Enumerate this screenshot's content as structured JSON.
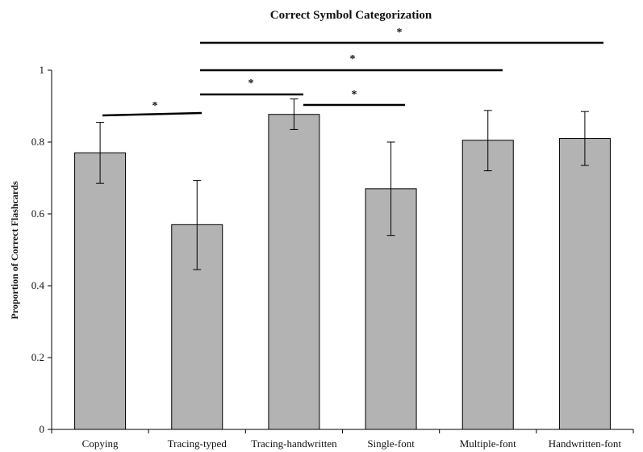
{
  "chart_data": {
    "type": "bar",
    "title": "Correct Symbol Categorization",
    "xlabel": "",
    "ylabel": "Proportion of Correct Flashcards",
    "ylim": [
      0,
      1
    ],
    "yticks": [
      "0",
      "0.2",
      "0.4",
      "0.6",
      "0.8",
      "1"
    ],
    "categories": [
      "Copying",
      "Tracing-typed",
      "Tracing-handwritten",
      "Single-font",
      "Multiple-font",
      "Handwritten-font"
    ],
    "values": [
      0.77,
      0.57,
      0.877,
      0.67,
      0.805,
      0.81
    ],
    "error_low": [
      0.685,
      0.445,
      0.835,
      0.54,
      0.72,
      0.735
    ],
    "error_high": [
      0.855,
      0.693,
      0.92,
      0.8,
      0.888,
      0.885
    ],
    "grid": false,
    "bar_color": "#b3b3b3",
    "significance": [
      {
        "from": "Copying",
        "to": "Tracing-typed",
        "label": "*"
      },
      {
        "from": "Tracing-typed",
        "to": "Tracing-handwritten",
        "label": "*"
      },
      {
        "from": "Tracing-handwritten",
        "to": "Single-font",
        "label": "*"
      },
      {
        "from": "Tracing-typed",
        "to": "Multiple-font",
        "label": "*"
      },
      {
        "from": "Tracing-typed",
        "to": "Handwritten-font",
        "label": "*"
      }
    ]
  }
}
